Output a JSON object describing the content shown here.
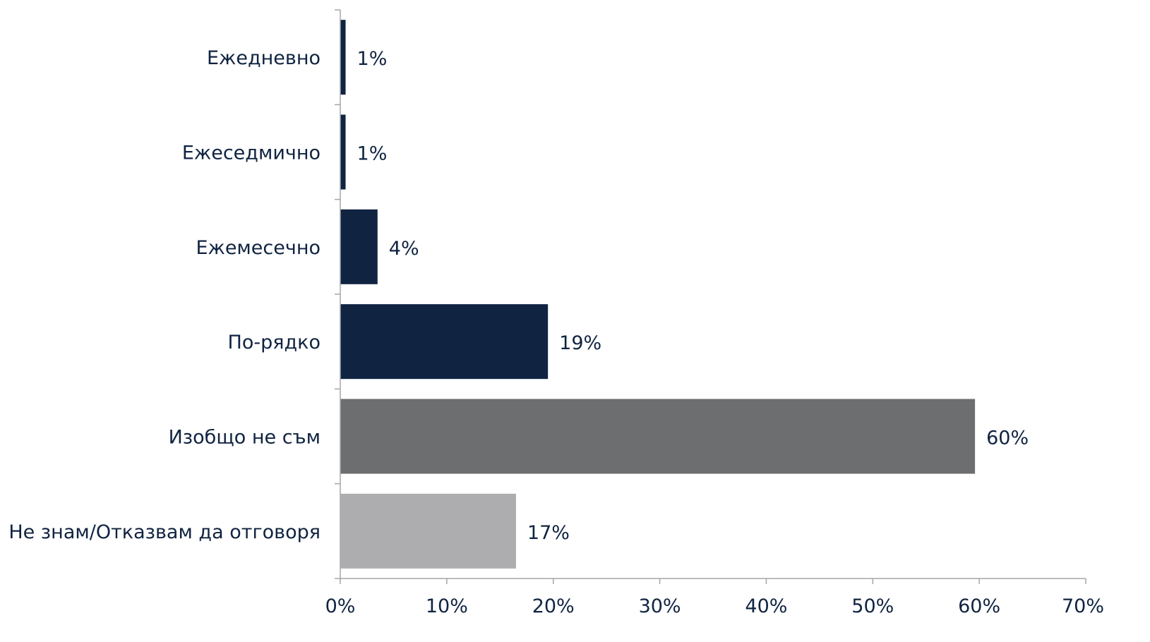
{
  "chart_data": {
    "type": "bar",
    "orientation": "horizontal",
    "categories": [
      "Ежедневно",
      "Ежеседмично",
      "Ежемесечно",
      "По-рядко",
      "Изобщо не съм",
      "Не знам/Отказвам да отговоря"
    ],
    "values": [
      0.5,
      0.5,
      3.5,
      19.5,
      59.6,
      16.5
    ],
    "data_labels": [
      "1%",
      "1%",
      "4%",
      "19%",
      "60%",
      "17%"
    ],
    "bar_colors": [
      "#102341",
      "#102341",
      "#102341",
      "#102341",
      "#6d6e70",
      "#adadaf"
    ],
    "xlim": [
      0,
      70
    ],
    "x_ticks": [
      0,
      10,
      20,
      30,
      40,
      50,
      60,
      70
    ],
    "x_tick_labels": [
      "0%",
      "10%",
      "20%",
      "30%",
      "40%",
      "50%",
      "60%",
      "70%"
    ],
    "grid": false,
    "legend": "none",
    "text_color": "#102341",
    "axis_color": "#a6a6a6"
  }
}
